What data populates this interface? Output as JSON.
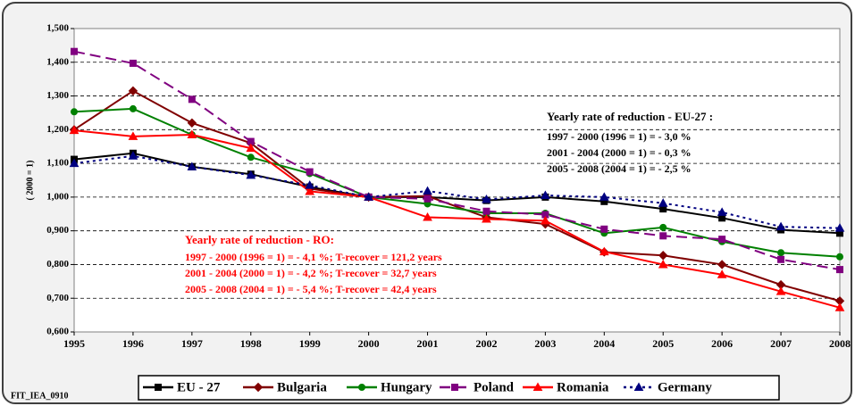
{
  "chart_data": {
    "type": "line",
    "y_axis_label": "( 2000 = 1)",
    "x": [
      1995,
      1996,
      1997,
      1998,
      1999,
      2000,
      2001,
      2002,
      2003,
      2004,
      2005,
      2006,
      2007,
      2008
    ],
    "xlim": [
      1995,
      2008
    ],
    "xticks": [
      1995,
      1996,
      1997,
      1998,
      1999,
      2000,
      2001,
      2002,
      2003,
      2004,
      2005,
      2006,
      2007,
      2008
    ],
    "ylim": [
      0.6,
      1.5
    ],
    "yticks": [
      {
        "value": 0.6,
        "label": "0,600"
      },
      {
        "value": 0.7,
        "label": "0,700"
      },
      {
        "value": 0.8,
        "label": "0,800"
      },
      {
        "value": 0.9,
        "label": "0,900"
      },
      {
        "value": 1.0,
        "label": "1,000"
      },
      {
        "value": 1.1,
        "label": "1,100"
      },
      {
        "value": 1.2,
        "label": "1,200"
      },
      {
        "value": 1.3,
        "label": "1,300"
      },
      {
        "value": 1.4,
        "label": "1,400"
      },
      {
        "value": 1.5,
        "label": "1,500"
      }
    ],
    "grid": true,
    "series": [
      {
        "name": "EU - 27",
        "color": "#000000",
        "dash": "solid",
        "marker": "square",
        "values": [
          1.112,
          1.13,
          1.09,
          1.068,
          1.03,
          1.0,
          1.0,
          0.99,
          1.0,
          0.987,
          0.965,
          0.938,
          0.903,
          0.893
        ]
      },
      {
        "name": "Bulgaria",
        "color": "#800000",
        "dash": "solid",
        "marker": "diamond",
        "values": [
          1.2,
          1.315,
          1.22,
          1.16,
          1.025,
          1.0,
          1.003,
          0.94,
          0.92,
          0.837,
          0.827,
          0.8,
          0.74,
          0.692
        ]
      },
      {
        "name": "Hungary",
        "color": "#008000",
        "dash": "solid",
        "marker": "circle",
        "values": [
          1.253,
          1.262,
          1.185,
          1.118,
          1.07,
          1.0,
          0.98,
          0.952,
          0.952,
          0.893,
          0.91,
          0.868,
          0.835,
          0.823
        ]
      },
      {
        "name": "Poland",
        "color": "#800080",
        "dash": "dashed",
        "marker": "square",
        "values": [
          1.432,
          1.397,
          1.29,
          1.165,
          1.075,
          1.0,
          0.995,
          0.958,
          0.948,
          0.905,
          0.885,
          0.875,
          0.815,
          0.785
        ]
      },
      {
        "name": "Romania",
        "color": "#ff0000",
        "dash": "solid",
        "marker": "triangle",
        "values": [
          1.198,
          1.18,
          1.185,
          1.145,
          1.017,
          1.0,
          0.94,
          0.935,
          0.93,
          0.838,
          0.8,
          0.77,
          0.72,
          0.672
        ]
      },
      {
        "name": "Germany",
        "color": "#000080",
        "dash": "dotted",
        "marker": "triangle",
        "values": [
          1.1,
          1.122,
          1.09,
          1.065,
          1.035,
          1.0,
          1.018,
          0.993,
          1.005,
          1.0,
          0.982,
          0.955,
          0.912,
          0.908
        ]
      }
    ],
    "legend": "bottom",
    "annotations": [
      {
        "color": "#000000",
        "lines": [
          "Yearly rate of reduction - EU-27 :",
          "1997 - 2000 (1996 = 1) = - 3,0 %",
          "2001 - 2004 (2000 = 1) = - 0,3 %",
          "2005 - 2008 (2004 = 1) = - 2,5 %"
        ]
      },
      {
        "color": "#ff0000",
        "lines": [
          "Yearly rate of reduction - RO:",
          "1997 - 2000 (1996 = 1) = - 4,1 %; T-recover = 121,2 years",
          "2001 - 2004 (2000 = 1) = - 4,2 %; T-recover =  32,7 years",
          "2005 - 2008 (2004 = 1) = - 5,4 %; T-recover =  42,4 years"
        ]
      }
    ],
    "footer": "FIT_IEA_0910"
  }
}
